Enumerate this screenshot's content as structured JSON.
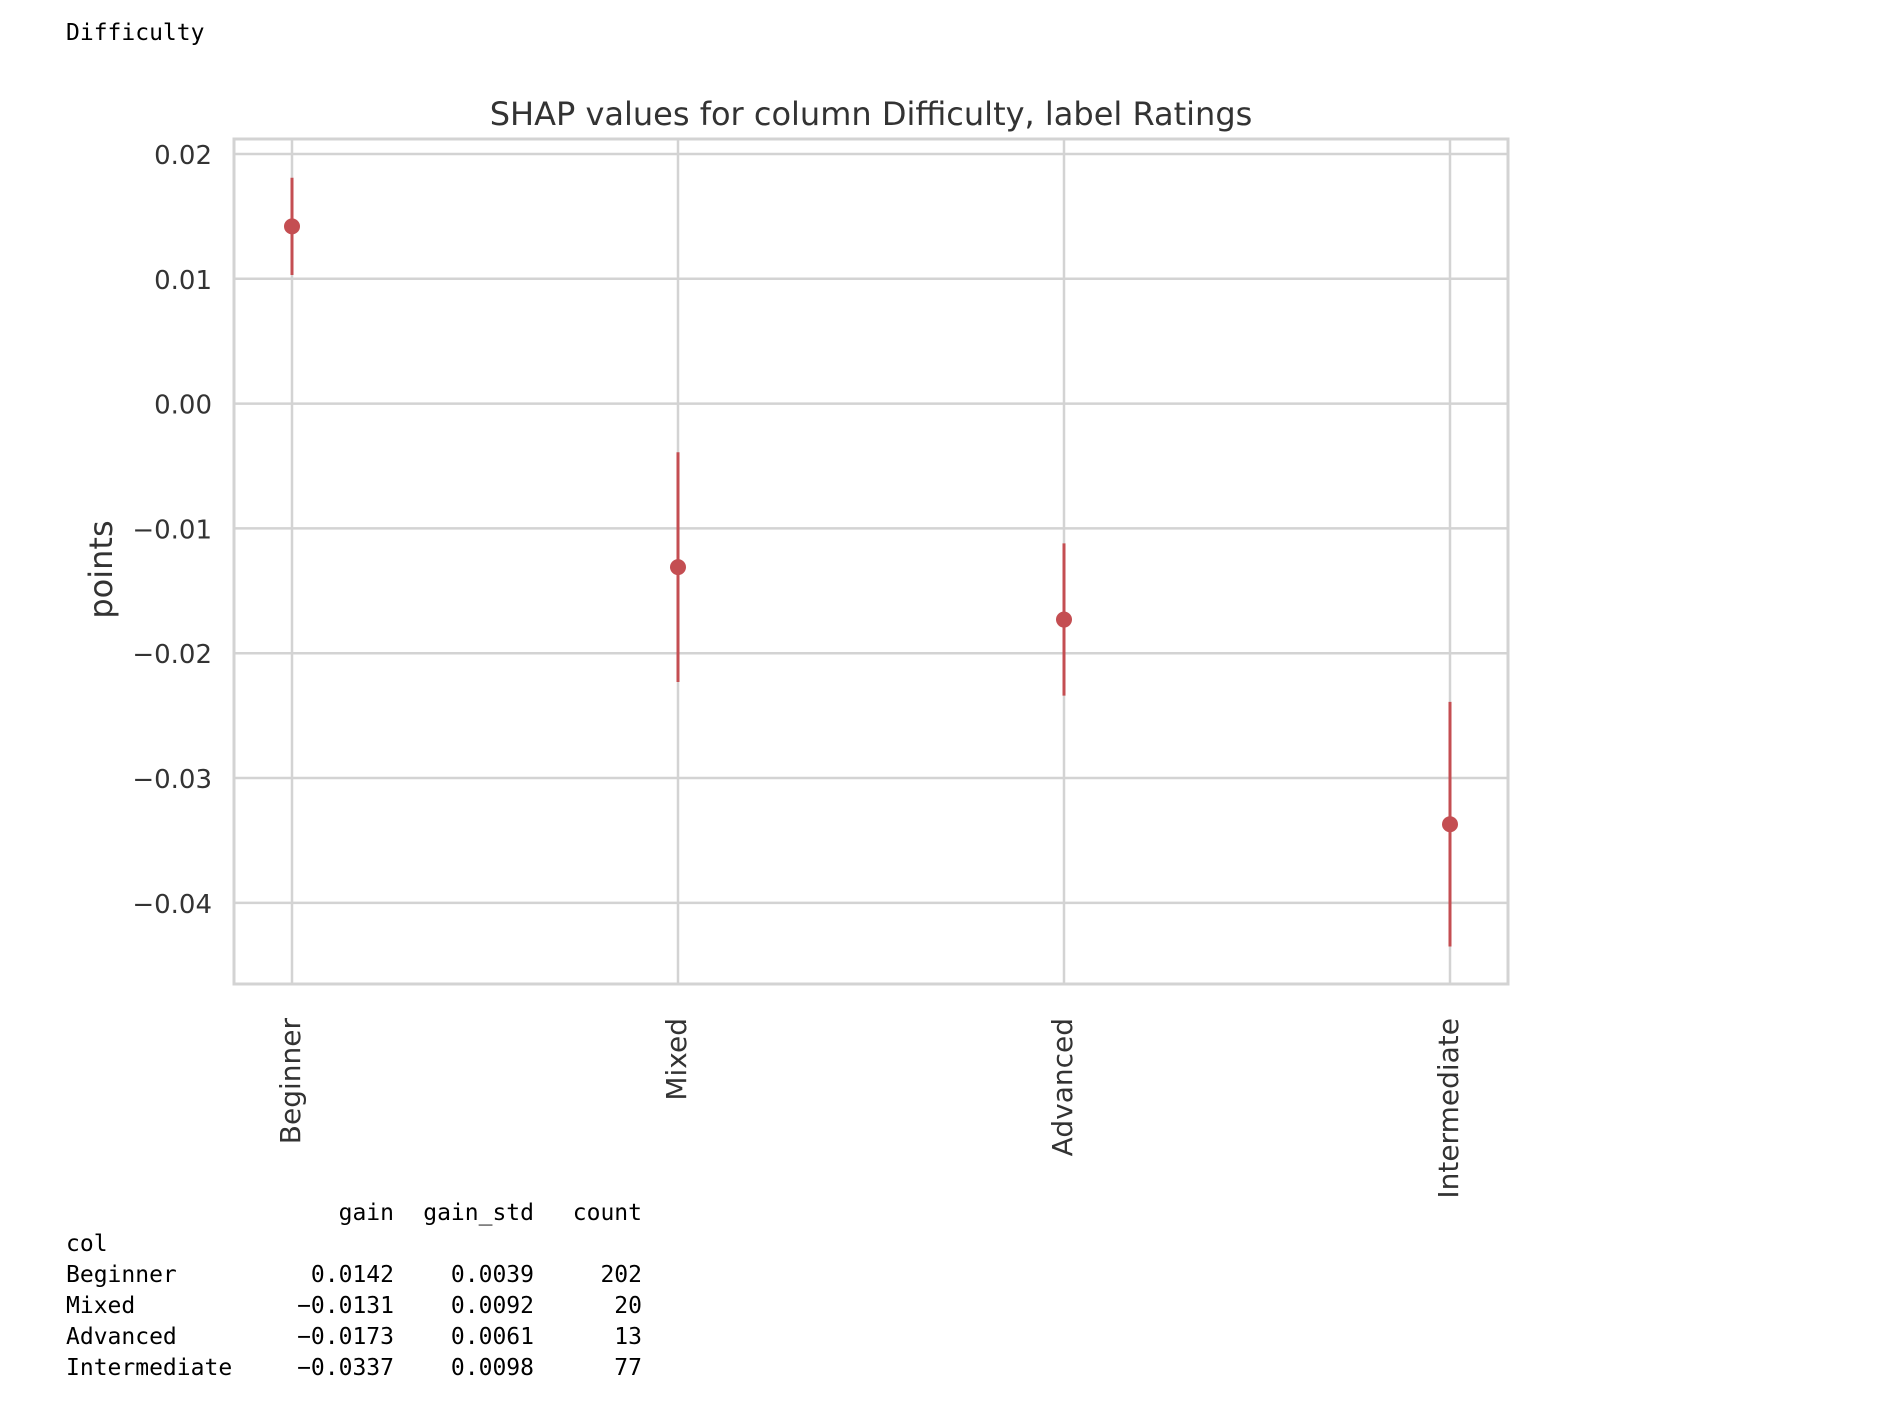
{
  "cell_title": "Difficulty",
  "chart_data": {
    "type": "errorbar",
    "title": "SHAP values for column Difficulty, label Ratings",
    "xlabel": "",
    "ylabel": "points",
    "categories": [
      "Beginner",
      "Mixed",
      "Advanced",
      "Intermediate"
    ],
    "values": [
      0.0142,
      -0.0131,
      -0.0173,
      -0.0337
    ],
    "errors": [
      0.0039,
      0.0092,
      0.0061,
      0.0098
    ],
    "ylim": [
      -0.0465,
      0.0212
    ],
    "yticks": [
      0.02,
      0.01,
      0.0,
      -0.01,
      -0.02,
      -0.03,
      -0.04
    ],
    "ytick_labels": [
      "0.02",
      "0.01",
      "0.00",
      "−0.01",
      "−0.02",
      "−0.03",
      "−0.04"
    ],
    "grid": true,
    "colors": {
      "marker": "#c44e52",
      "grid": "#d3d3d3",
      "text": "#333333"
    }
  },
  "table": {
    "columns": [
      "gain",
      "gain_std",
      "count"
    ],
    "index_name": "col",
    "rows": [
      {
        "label": "Beginner",
        "gain": "0.0142",
        "gain_std": "0.0039",
        "count": "202"
      },
      {
        "label": "Mixed",
        "gain": "−0.0131",
        "gain_std": "0.0092",
        "count": "20"
      },
      {
        "label": "Advanced",
        "gain": "−0.0173",
        "gain_std": "0.0061",
        "count": "13"
      },
      {
        "label": "Intermediate",
        "gain": "−0.0337",
        "gain_std": "0.0098",
        "count": "77"
      }
    ]
  }
}
